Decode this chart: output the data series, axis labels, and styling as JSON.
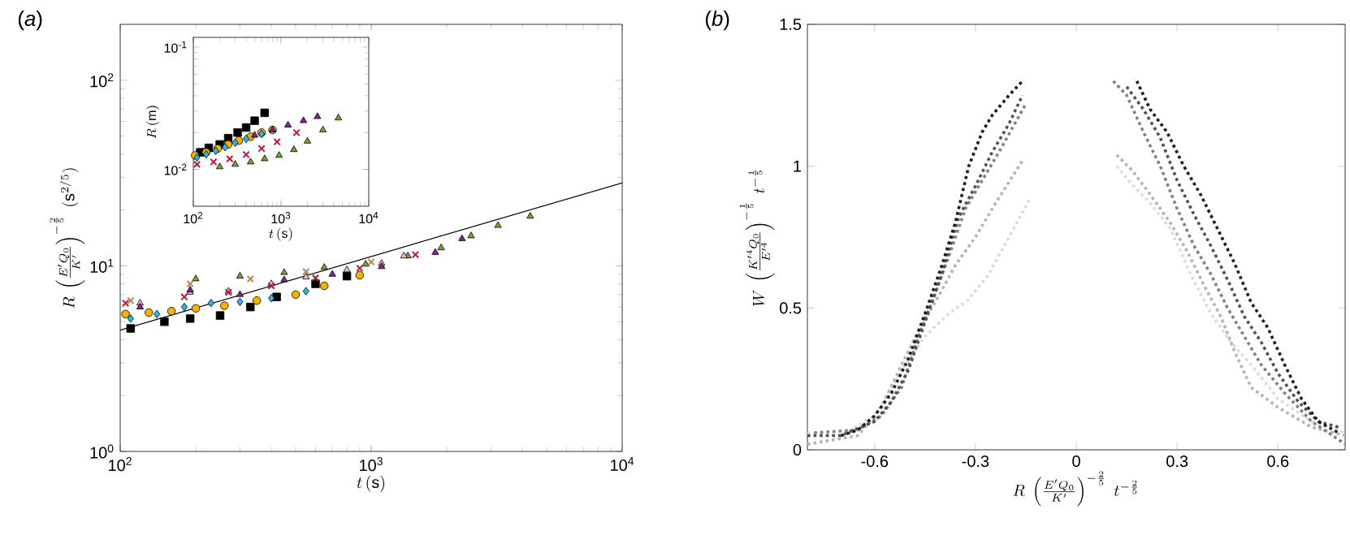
{
  "chart_data": [
    {
      "type": "scatter",
      "title": "(*a*)",
      "xlabel": "t\\,(\\mathrm{s})",
      "ylabel": "R\\;\\left(\\frac{E'Q_0}{K'}\\right)^{-\\frac{2}{5}}\\;(\\mathrm{s}^{2/5})",
      "log": "xy",
      "xlim": [
        100,
        10000
      ],
      "ylim": [
        1,
        200
      ],
      "xticks": [
        {
          "value": 100,
          "label": "10$^{2}$"
        },
        {
          "value": 1000,
          "label": "10$^{3}$"
        },
        {
          "value": 10000,
          "label": "10$^{4}$"
        }
      ],
      "yticks": [
        {
          "value": 1,
          "label": "10$^{0}$"
        },
        {
          "value": 10,
          "label": "10$^{1}$"
        },
        {
          "value": 100,
          "label": "10$^{2}$"
        }
      ],
      "series": [
        {
          "color": "#000000",
          "marker": "square",
          "x": [
            110,
            150,
            190,
            250,
            330,
            420,
            600,
            800
          ],
          "values": [
            4.6,
            5.0,
            5.2,
            5.4,
            6.0,
            6.8,
            8.0,
            8.8
          ]
        },
        {
          "color": "#f0b400",
          "marker": "circle",
          "x": [
            105,
            130,
            160,
            200,
            260,
            350,
            500,
            650,
            900
          ],
          "values": [
            5.5,
            5.6,
            5.7,
            5.9,
            6.1,
            6.5,
            7.0,
            7.8,
            8.9
          ]
        },
        {
          "color": "#2eb5e8",
          "marker": "diamond",
          "x": [
            110,
            140,
            180,
            230,
            300,
            400,
            550
          ],
          "values": [
            5.2,
            5.5,
            6.0,
            6.3,
            6.4,
            6.7,
            7.3
          ]
        },
        {
          "color": "#77a03a",
          "marker": "triangle",
          "x": [
            200,
            300,
            450,
            650,
            950,
            1400,
            1900,
            2500,
            3200,
            4300
          ],
          "values": [
            8.5,
            8.8,
            9.2,
            9.8,
            10.2,
            11.3,
            12.5,
            14.5,
            16.5,
            18.5
          ]
        },
        {
          "color": "#f2b8d8",
          "marker": "triangle",
          "x": [
            120,
            190,
            270,
            400,
            550,
            800,
            1100,
            1350
          ],
          "values": [
            6.3,
            7.2,
            7.3,
            8.0,
            8.7,
            9.5,
            10.3,
            11.3
          ]
        },
        {
          "color": "#7b2a8c",
          "marker": "triangle",
          "x": [
            120,
            190,
            300,
            450,
            700,
            1100,
            1800,
            2300
          ],
          "values": [
            6.0,
            7.4,
            7.0,
            8.4,
            9.0,
            9.9,
            11.8,
            14.0
          ]
        },
        {
          "color": "#c0143c",
          "marker": "cross",
          "x": [
            105,
            180,
            270,
            400,
            600,
            900,
            1500
          ],
          "values": [
            6.3,
            6.8,
            7.2,
            7.8,
            8.6,
            9.7,
            11.5
          ]
        },
        {
          "color": "#b08850",
          "marker": "cross",
          "x": [
            110,
            190,
            330,
            550,
            1000
          ],
          "values": [
            6.5,
            8.0,
            8.5,
            9.3,
            10.5
          ]
        },
        {
          "type": "line",
          "color": "#000000",
          "marker": "none",
          "x": [
            100,
            10000
          ],
          "values": [
            4.5,
            28
          ]
        }
      ]
    },
    {
      "type": "scatter",
      "xlabel": "t\\,(\\mathrm{s})",
      "ylabel": "R\\,(\\mathrm{m})",
      "log": "xy",
      "xlim": [
        100,
        10000
      ],
      "ylim": [
        0.005,
        0.12
      ],
      "xticks": [
        {
          "value": 100,
          "label": "10$^{2}$"
        },
        {
          "value": 1000,
          "label": "10$^{3}$"
        },
        {
          "value": 10000,
          "label": "10$^{4}$"
        }
      ],
      "yticks": [
        {
          "value": 0.01,
          "label": "10$^{-2}$"
        },
        {
          "value": 0.1,
          "label": "10$^{-1}$"
        }
      ],
      "series": [
        {
          "color": "#000000",
          "marker": "square",
          "x": [
            120,
            150,
            200,
            250,
            320,
            400,
            500,
            650
          ],
          "values": [
            0.0138,
            0.015,
            0.016,
            0.018,
            0.02,
            0.022,
            0.025,
            0.029
          ]
        },
        {
          "color": "#f0b400",
          "marker": "circle",
          "x": [
            105,
            140,
            190,
            250,
            330,
            450,
            600,
            800
          ],
          "values": [
            0.013,
            0.0138,
            0.0148,
            0.016,
            0.0172,
            0.0185,
            0.02,
            0.021
          ]
        },
        {
          "color": "#2eb5e8",
          "marker": "diamond",
          "x": [
            110,
            140,
            180,
            230,
            300,
            400,
            600
          ],
          "values": [
            0.0125,
            0.0133,
            0.0142,
            0.0152,
            0.0165,
            0.0178,
            0.0195
          ]
        },
        {
          "color": "#77a03a",
          "marker": "triangle",
          "x": [
            200,
            300,
            450,
            650,
            950,
            1400,
            2000,
            3000,
            4500
          ],
          "values": [
            0.0105,
            0.011,
            0.0115,
            0.0122,
            0.013,
            0.0145,
            0.017,
            0.021,
            0.0263
          ]
        },
        {
          "color": "#7b2a8c",
          "marker": "triangle",
          "x": [
            500,
            800,
            1200,
            1800,
            2600
          ],
          "values": [
            0.019,
            0.021,
            0.023,
            0.025,
            0.027
          ]
        },
        {
          "color": "#c0143c",
          "marker": "cross",
          "x": [
            110,
            170,
            260,
            400,
            600,
            900,
            1500
          ],
          "values": [
            0.011,
            0.0115,
            0.0122,
            0.0132,
            0.0148,
            0.0168,
            0.02
          ]
        }
      ]
    },
    {
      "type": "line",
      "title": "(*b*)",
      "xlabel": "R\\;\\left(\\frac{E'Q_0}{K'}\\right)^{-\\frac{2}{5}}\\;t^{-\\frac{2}{5}}",
      "ylabel": "W\\;\\left(\\frac{K'^4Q_0}{E'^4}\\right)^{-\\frac{1}{5}}\\;t^{-\\frac{1}{5}}",
      "xlim": [
        -0.8,
        0.8
      ],
      "ylim": [
        0,
        1.5
      ],
      "xticks": [
        -0.6,
        -0.3,
        0,
        0.3,
        0.6
      ],
      "yticks": [
        0,
        0.5,
        1,
        1.5
      ],
      "line_style": "dotted",
      "series": [
        {
          "color": "#dcdcdc",
          "x": [
            -0.8,
            -0.7,
            -0.6,
            -0.52,
            -0.45,
            -0.38,
            -0.32,
            -0.26,
            -0.2,
            -0.14,
            null,
            0.12,
            0.17,
            0.22,
            0.28,
            0.34,
            0.4,
            0.46,
            0.52,
            0.6,
            0.7,
            0.8
          ],
          "values": [
            0.06,
            0.05,
            0.12,
            0.28,
            0.4,
            0.48,
            0.53,
            0.62,
            0.75,
            0.88,
            null,
            1.0,
            0.93,
            0.87,
            0.78,
            0.62,
            0.48,
            0.38,
            0.3,
            0.18,
            0.1,
            0.06
          ]
        },
        {
          "color": "#b4b4b4",
          "x": [
            -0.8,
            -0.65,
            -0.58,
            -0.52,
            -0.47,
            -0.42,
            -0.36,
            -0.3,
            -0.24,
            -0.16,
            null,
            0.12,
            0.17,
            0.22,
            0.28,
            0.33,
            0.38,
            0.43,
            0.47,
            0.52,
            0.6,
            0.7,
            0.8
          ],
          "values": [
            0.02,
            0.05,
            0.15,
            0.3,
            0.42,
            0.52,
            0.65,
            0.75,
            0.87,
            1.02,
            null,
            1.04,
            0.98,
            0.9,
            0.8,
            0.7,
            0.58,
            0.47,
            0.35,
            0.22,
            0.15,
            0.08,
            0.05
          ]
        },
        {
          "color": "#808080",
          "x": [
            -0.78,
            -0.65,
            -0.58,
            -0.52,
            -0.47,
            -0.42,
            -0.38,
            -0.33,
            -0.28,
            -0.23,
            -0.15,
            null,
            0.11,
            0.15,
            0.2,
            0.25,
            0.3,
            0.35,
            0.4,
            0.45,
            0.5,
            0.55,
            0.62,
            0.7,
            0.8
          ],
          "values": [
            0.06,
            0.07,
            0.12,
            0.22,
            0.4,
            0.55,
            0.68,
            0.85,
            0.95,
            1.05,
            1.22,
            null,
            1.3,
            1.25,
            1.12,
            1.0,
            0.85,
            0.72,
            0.62,
            0.5,
            0.4,
            0.3,
            0.2,
            0.1,
            0.02
          ]
        },
        {
          "color": "#505050",
          "x": [
            -0.8,
            -0.7,
            -0.6,
            -0.55,
            -0.5,
            -0.45,
            -0.4,
            -0.35,
            -0.3,
            -0.25,
            -0.2,
            -0.16,
            null,
            0.15,
            0.2,
            0.25,
            0.3,
            0.35,
            0.4,
            0.45,
            0.5,
            0.55,
            0.6,
            0.66,
            0.72,
            0.78
          ],
          "values": [
            0.05,
            0.05,
            0.1,
            0.17,
            0.28,
            0.45,
            0.62,
            0.82,
            0.93,
            1.05,
            1.15,
            1.25,
            null,
            1.28,
            1.2,
            1.1,
            0.95,
            0.83,
            0.72,
            0.6,
            0.47,
            0.38,
            0.27,
            0.17,
            0.1,
            0.08
          ]
        },
        {
          "color": "#1a1a1a",
          "x": [
            -0.7,
            -0.65,
            -0.6,
            -0.55,
            -0.5,
            -0.45,
            -0.4,
            -0.36,
            -0.32,
            -0.28,
            -0.25,
            -0.2,
            -0.16,
            null,
            0.18,
            0.22,
            0.27,
            0.32,
            0.37,
            0.42,
            0.47,
            0.52,
            0.57,
            0.62,
            0.67,
            0.72,
            0.78
          ],
          "values": [
            0.05,
            0.07,
            0.12,
            0.2,
            0.32,
            0.48,
            0.65,
            0.8,
            1.0,
            1.12,
            1.18,
            1.25,
            1.3,
            null,
            1.3,
            1.2,
            1.12,
            1.0,
            0.9,
            0.78,
            0.66,
            0.52,
            0.43,
            0.3,
            0.18,
            0.1,
            0.06
          ]
        }
      ]
    }
  ]
}
